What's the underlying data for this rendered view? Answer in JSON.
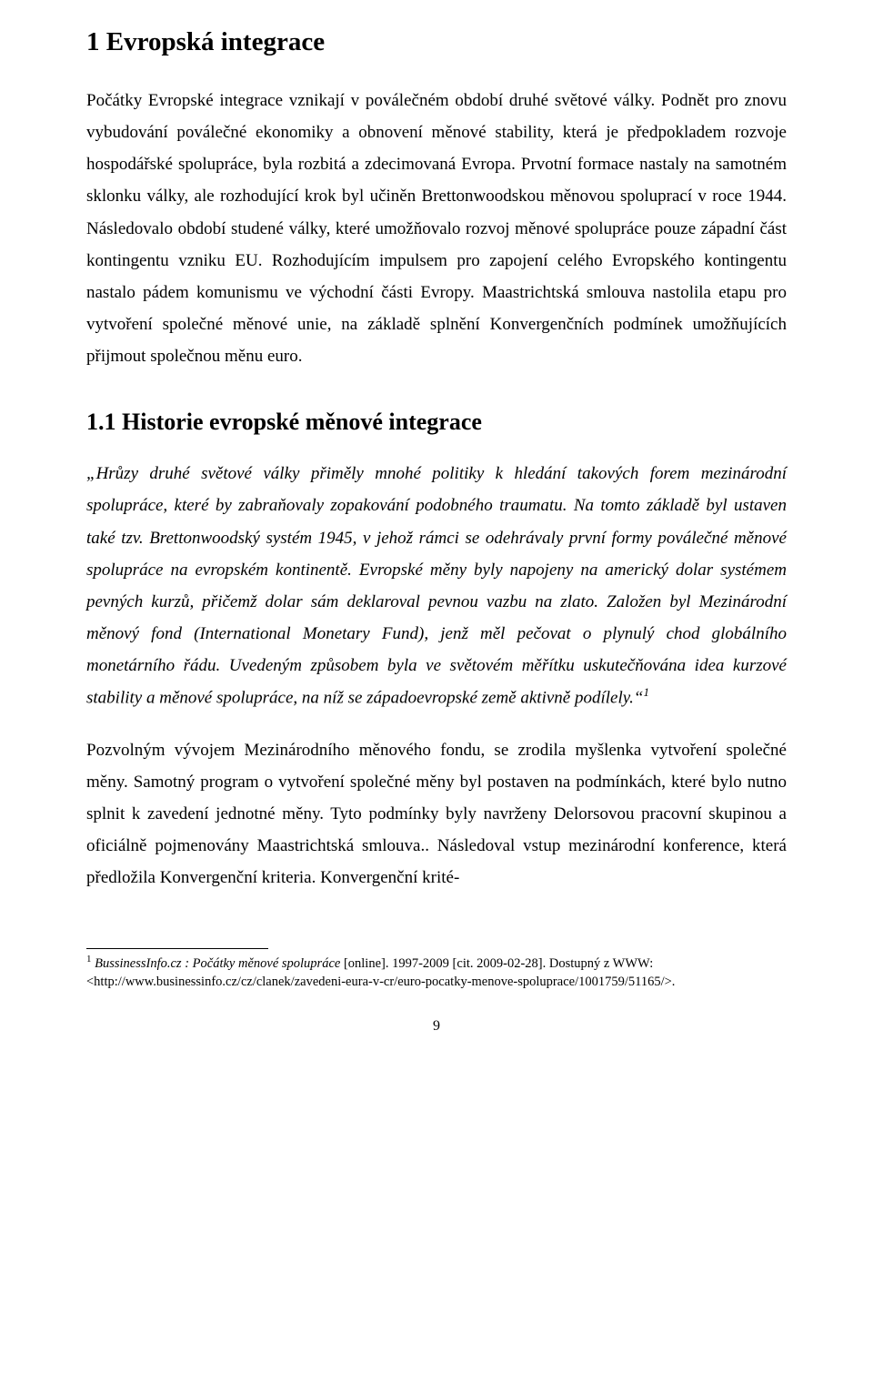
{
  "heading1": "1  Evropská integrace",
  "para1": "Počátky Evropské integrace vznikají v poválečném období druhé světové války. Podnět pro znovu vybudování poválečné ekonomiky a obnovení měnové stability, která je předpokladem rozvoje hospodářské spolupráce, byla rozbitá a zdecimovaná Evropa. Prvotní formace nastaly na samotném sklonku války, ale rozhodující krok byl učiněn Brettonwoodskou měnovou spoluprací  v roce 1944. Následovalo období studené války, které umožňovalo  rozvoj měnové spolupráce pouze západní část kontingentu vzniku EU. Rozhodujícím impulsem pro zapojení celého Evropského kontingentu nastalo pádem komunismu ve východní části Evropy. Maastrichtská smlouva nastolila etapu pro vytvoření společné měnové unie, na základě  splnění Konvergenčních podmínek umožňujících přijmout společnou měnu euro.",
  "heading2": "1.1  Historie evropské měnové integrace",
  "para2_italic": "„Hrůzy druhé světové války přiměly mnohé politiky k hledání takových forem mezinárodní spolupráce, které by zabraňovaly zopakování podobného traumatu. Na tomto základě byl ustaven také tzv. Brettonwoodský systém 1945, v jehož rámci se odehrávaly první formy poválečné měnové spolupráce na evropském kontinentě. Evropské měny byly napojeny na americký dolar systémem pevných kurzů, přičemž dolar sám deklaroval pevnou vazbu na zlato. Založen byl Mezinárodní měnový fond (International Monetary Fund), jenž měl pečovat o plynulý chod globálního monetárního řádu. Uvedeným způsobem byla ve světovém měřítku uskutečňována idea kurzové stability a měnové spolupráce, na níž se západoevropské země aktivně podílely.“",
  "fn_ref": "1",
  "para3": "Pozvolným vývojem Mezinárodního měnového fondu, se zrodila myšlenka vytvoření společné měny. Samotný program o vytvoření společné měny byl postaven na podmínkách, které bylo nutno splnit k zavedení jednotné měny. Tyto podmínky byly navrženy Delorsovou pracovní skupinou a  oficiálně pojmenovány Maastrichtská smlouva.. Následoval vstup mezinárodní konference, která předložila Konvergenční kriteria. Konvergenční krité-",
  "footnote_num": "1",
  "footnote_source_italic": "BussinessInfo.cz : Počátky měnové spolupráce",
  "footnote_rest": " [online]. 1997-2009 [cit. 2009-02-28]. Dostupný z WWW: <http://www.businessinfo.cz/cz/clanek/zavedeni-eura-v-cr/euro-pocatky-menove-spoluprace/1001759/51165/>.",
  "page_number": "9"
}
